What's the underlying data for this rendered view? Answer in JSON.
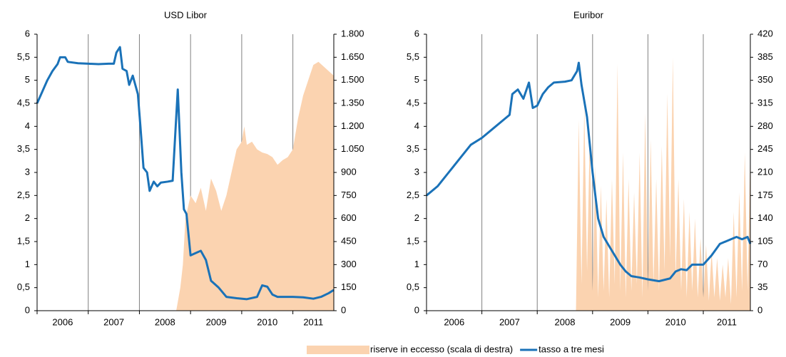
{
  "chart_data": [
    {
      "type": "line",
      "title": "USD Libor",
      "xlim": [
        2006,
        2011.8
      ],
      "xticks": [
        2006,
        2007,
        2008,
        2009,
        2010,
        2011
      ],
      "grid": true,
      "ylim": [
        0,
        6
      ],
      "yticks": [
        0,
        {
          "value": 0.5,
          "label": "0,5"
        },
        1,
        {
          "value": 1.5,
          "label": "1,5"
        },
        2,
        {
          "value": 2.5,
          "label": "2,5"
        },
        3,
        {
          "value": 3.5,
          "label": "3,5"
        },
        4,
        {
          "value": 4.5,
          "label": "4,5"
        },
        5,
        {
          "value": 5.5,
          "label": "5,5"
        },
        6
      ],
      "y2lim": [
        0,
        1800
      ],
      "y2ticks": [
        0,
        150,
        300,
        450,
        600,
        750,
        900,
        {
          "value": 1050,
          "label": "1.050"
        },
        {
          "value": 1200,
          "label": "1.200"
        },
        {
          "value": 1350,
          "label": "1.350"
        },
        {
          "value": 1500,
          "label": "1.500"
        },
        {
          "value": 1650,
          "label": "1.650"
        },
        {
          "value": 1800,
          "label": "1.800"
        }
      ],
      "series": [
        {
          "name": "riserve in eccesso (scala di destra)",
          "color": "#fbd3b0",
          "kind": "area",
          "axis": "y2",
          "x": [
            2008.72,
            2008.8,
            2008.85,
            2008.9,
            2009.0,
            2009.1,
            2009.2,
            2009.3,
            2009.4,
            2009.5,
            2009.6,
            2009.7,
            2009.8,
            2009.9,
            2010.0,
            2010.05,
            2010.1,
            2010.2,
            2010.3,
            2010.4,
            2010.5,
            2010.6,
            2010.7,
            2010.8,
            2010.9,
            2011.0,
            2011.1,
            2011.2,
            2011.3,
            2011.4,
            2011.5,
            2011.6,
            2011.7,
            2011.8
          ],
          "values": [
            0,
            150,
            300,
            600,
            750,
            700,
            800,
            650,
            860,
            780,
            650,
            750,
            900,
            1050,
            1100,
            1200,
            1080,
            1100,
            1050,
            1030,
            1020,
            1000,
            950,
            980,
            1000,
            1050,
            1250,
            1400,
            1500,
            1600,
            1620,
            1590,
            1560,
            1530
          ]
        },
        {
          "name": "tasso a tre mesi",
          "color": "#1a72b8",
          "kind": "line",
          "x": [
            2006.0,
            2006.1,
            2006.2,
            2006.3,
            2006.4,
            2006.45,
            2006.55,
            2006.6,
            2006.8,
            2007.0,
            2007.2,
            2007.4,
            2007.5,
            2007.55,
            2007.62,
            2007.67,
            2007.75,
            2007.8,
            2007.87,
            2007.92,
            2007.97,
            2008.02,
            2008.08,
            2008.15,
            2008.2,
            2008.28,
            2008.35,
            2008.42,
            2008.55,
            2008.65,
            2008.75,
            2008.82,
            2008.87,
            2008.92,
            2009.0,
            2009.1,
            2009.2,
            2009.3,
            2009.4,
            2009.55,
            2009.7,
            2009.9,
            2010.1,
            2010.3,
            2010.4,
            2010.5,
            2010.6,
            2010.7,
            2011.0,
            2011.2,
            2011.4,
            2011.55,
            2011.7,
            2011.8
          ],
          "values": [
            4.5,
            4.75,
            5.0,
            5.2,
            5.35,
            5.5,
            5.5,
            5.4,
            5.37,
            5.36,
            5.35,
            5.36,
            5.36,
            5.6,
            5.72,
            5.25,
            5.2,
            4.9,
            5.1,
            4.9,
            4.7,
            4.0,
            3.1,
            3.0,
            2.6,
            2.8,
            2.7,
            2.78,
            2.8,
            2.82,
            4.8,
            3.0,
            2.2,
            2.1,
            1.2,
            1.25,
            1.3,
            1.1,
            0.65,
            0.5,
            0.3,
            0.27,
            0.25,
            0.3,
            0.55,
            0.52,
            0.35,
            0.3,
            0.3,
            0.29,
            0.26,
            0.3,
            0.38,
            0.45
          ]
        }
      ]
    },
    {
      "type": "line",
      "title": "Euribor",
      "xlim": [
        2006,
        2011.85
      ],
      "xticks": [
        2006,
        2007,
        2008,
        2009,
        2010,
        2011
      ],
      "grid": true,
      "ylim": [
        0,
        6
      ],
      "yticks": [
        0,
        {
          "value": 0.5,
          "label": "0,5"
        },
        1,
        {
          "value": 1.5,
          "label": "1,5"
        },
        2,
        {
          "value": 2.5,
          "label": "2,5"
        },
        3,
        {
          "value": 3.5,
          "label": "3,5"
        },
        4,
        {
          "value": 4.5,
          "label": "4,5"
        },
        5,
        {
          "value": 5.5,
          "label": "5,5"
        },
        6
      ],
      "y2lim": [
        0,
        420
      ],
      "y2ticks": [
        0,
        35,
        70,
        105,
        140,
        175,
        210,
        245,
        280,
        315,
        350,
        385,
        420
      ],
      "series": [
        {
          "color": "#fbd3b0",
          "kind": "area",
          "axis": "y2",
          "x": [
            2008.7,
            2008.75,
            2008.8,
            2008.85,
            2008.9,
            2008.95,
            2009.0,
            2009.05,
            2009.1,
            2009.15,
            2009.2,
            2009.25,
            2009.3,
            2009.35,
            2009.4,
            2009.45,
            2009.5,
            2009.55,
            2009.6,
            2009.65,
            2009.7,
            2009.75,
            2009.8,
            2009.85,
            2009.9,
            2009.95,
            2010.0,
            2010.05,
            2010.1,
            2010.15,
            2010.2,
            2010.25,
            2010.3,
            2010.35,
            2010.4,
            2010.45,
            2010.5,
            2010.55,
            2010.6,
            2010.65,
            2010.7,
            2010.75,
            2010.8,
            2010.85,
            2010.9,
            2010.95,
            2011.0,
            2011.05,
            2011.1,
            2011.15,
            2011.2,
            2011.25,
            2011.3,
            2011.35,
            2011.4,
            2011.45,
            2011.5,
            2011.55,
            2011.6,
            2011.65,
            2011.7,
            2011.75,
            2011.8,
            2011.85
          ],
          "values": [
            0,
            290,
            40,
            310,
            60,
            270,
            30,
            220,
            20,
            190,
            30,
            170,
            20,
            200,
            40,
            375,
            30,
            240,
            20,
            200,
            30,
            180,
            40,
            240,
            20,
            300,
            30,
            260,
            40,
            200,
            30,
            250,
            60,
            330,
            80,
            385,
            50,
            200,
            30,
            170,
            20,
            150,
            30,
            140,
            20,
            110,
            20,
            100,
            15,
            90,
            20,
            80,
            15,
            70,
            20,
            80,
            10,
            150,
            20,
            180,
            30,
            240,
            30,
            250
          ]
        },
        {
          "color": "#1a72b8",
          "kind": "line",
          "x": [
            2006.0,
            2006.2,
            2006.4,
            2006.6,
            2006.8,
            2007.0,
            2007.2,
            2007.4,
            2007.5,
            2007.55,
            2007.65,
            2007.75,
            2007.85,
            2007.92,
            2008.0,
            2008.1,
            2008.2,
            2008.3,
            2008.5,
            2008.62,
            2008.72,
            2008.75,
            2008.8,
            2008.9,
            2009.0,
            2009.1,
            2009.2,
            2009.3,
            2009.4,
            2009.5,
            2009.6,
            2009.7,
            2009.85,
            2010.0,
            2010.2,
            2010.4,
            2010.5,
            2010.6,
            2010.7,
            2010.8,
            2011.0,
            2011.15,
            2011.3,
            2011.5,
            2011.6,
            2011.7,
            2011.8,
            2011.85
          ],
          "values": [
            2.5,
            2.7,
            3.0,
            3.3,
            3.6,
            3.75,
            3.95,
            4.15,
            4.25,
            4.7,
            4.8,
            4.6,
            4.95,
            4.4,
            4.45,
            4.7,
            4.85,
            4.95,
            4.97,
            5.0,
            5.2,
            5.38,
            4.9,
            4.2,
            3.0,
            2.0,
            1.6,
            1.4,
            1.2,
            1.0,
            0.85,
            0.75,
            0.72,
            0.68,
            0.64,
            0.7,
            0.85,
            0.9,
            0.88,
            1.0,
            1.0,
            1.2,
            1.45,
            1.55,
            1.6,
            1.55,
            1.6,
            1.45
          ]
        }
      ]
    }
  ]
}
